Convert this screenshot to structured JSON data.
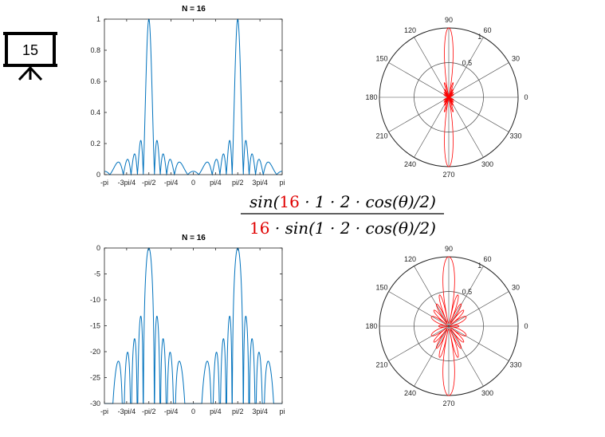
{
  "slide": {
    "slide_number": "15",
    "formula": {
      "numerator": {
        "pre": "sin(",
        "highlight": "16",
        "post": " · 1 · 2 · cos(θ)/2)"
      },
      "denominator": {
        "highlight": "16",
        "post": " · sin(1 · 2 · cos(θ)/2)"
      },
      "highlight_color": "#e00000"
    }
  },
  "chart_data": [
    {
      "type": "line",
      "title": "N = 16",
      "xlabel": "",
      "ylabel": "",
      "xlim": [
        -3.14159,
        3.14159
      ],
      "ylim": [
        0,
        1
      ],
      "xticks": [
        "-pi",
        "-3pi/4",
        "-pi/2",
        "-pi/4",
        "0",
        "pi/4",
        "pi/2",
        "3pi/4",
        "pi"
      ],
      "yticks": [
        "0",
        "0.2",
        "0.4",
        "0.6",
        "0.8",
        "1"
      ],
      "series": [
        {
          "function": "|sin(16·cos(x))/(16·sin(cos(x)))|",
          "N": 16,
          "color": "#0072bd"
        }
      ]
    },
    {
      "type": "polar",
      "title": "",
      "radial_ticks": [
        "0.5",
        "1"
      ],
      "angle_ticks": [
        "0",
        "30",
        "60",
        "90",
        "120",
        "150",
        "180",
        "210",
        "240",
        "270",
        "300",
        "330"
      ],
      "series": [
        {
          "function": "|sin(16·cos(θ))/(16·sin(cos(θ)))|",
          "N": 16,
          "color": "#ff0000"
        }
      ]
    },
    {
      "type": "line",
      "title": "N = 16",
      "xlabel": "",
      "ylabel": "",
      "xlim": [
        -3.14159,
        3.14159
      ],
      "ylim": [
        -30,
        0
      ],
      "xticks": [
        "-pi",
        "-3pi/4",
        "-pi/2",
        "-pi/4",
        "0",
        "pi/4",
        "pi/2",
        "3pi/4",
        "pi"
      ],
      "yticks": [
        "0",
        "-5",
        "-10",
        "-15",
        "-20",
        "-25",
        "-30"
      ],
      "series": [
        {
          "function": "20·log10|sin(16·cos(x))/(16·sin(cos(x)))|",
          "N": 16,
          "color": "#0072bd"
        }
      ]
    },
    {
      "type": "polar",
      "title": "",
      "radial_ticks": [
        "0.5",
        "1"
      ],
      "angle_ticks": [
        "0",
        "30",
        "60",
        "90",
        "120",
        "150",
        "180",
        "210",
        "240",
        "270",
        "300",
        "330"
      ],
      "series": [
        {
          "function": "sqrt|sin(16·cos(θ))/(16·sin(cos(θ)))|",
          "N": 16,
          "color": "#ff0000"
        }
      ]
    }
  ]
}
